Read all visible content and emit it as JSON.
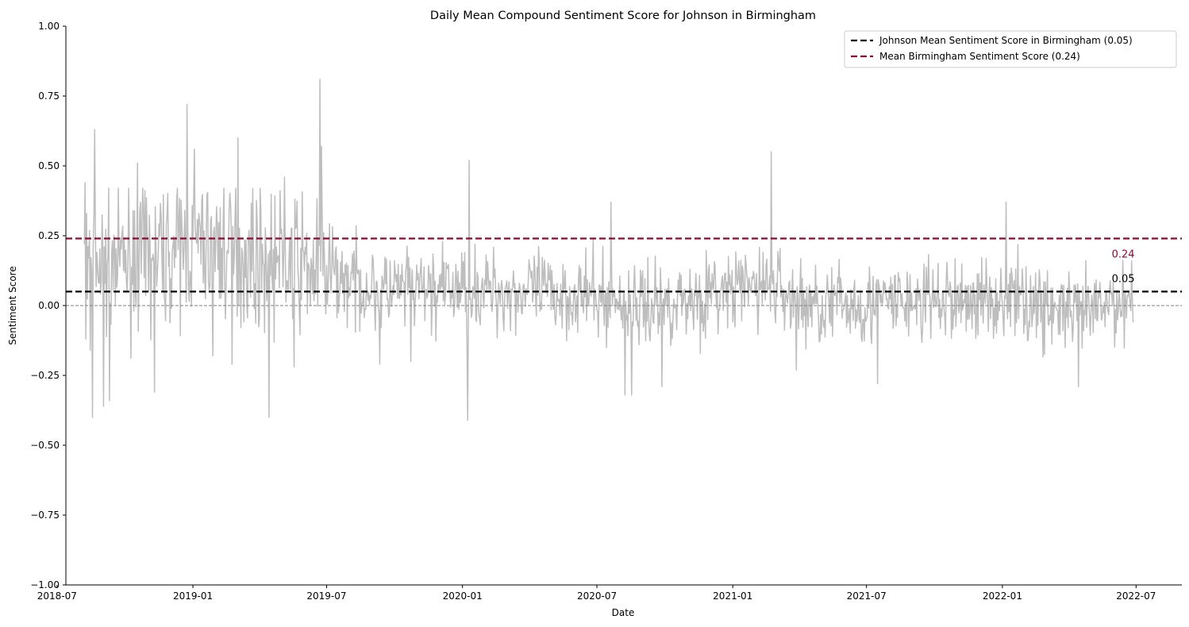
{
  "chart_data": {
    "type": "line",
    "title": "Daily Mean Compound Sentiment Score for Johnson in Birmingham",
    "xlabel": "Date",
    "ylabel": "Sentiment Score",
    "xlim": [
      "2018-07-13",
      "2022-09-01"
    ],
    "ylim": [
      -1.0,
      1.0
    ],
    "x_ticks": [
      "2018-07",
      "2019-01",
      "2019-07",
      "2020-01",
      "2020-07",
      "2021-01",
      "2021-07",
      "2022-01",
      "2022-07"
    ],
    "y_ticks": [
      "1.00",
      "0.75",
      "0.50",
      "0.25",
      "0.00",
      "−0.25",
      "−0.50",
      "−0.75",
      "−1.00"
    ],
    "y_tick_values": [
      1.0,
      0.75,
      0.5,
      0.25,
      0.0,
      -0.25,
      -0.5,
      -0.75,
      -1.0
    ],
    "grid": false,
    "legend_position": "top-right",
    "series": [
      {
        "color": "#bebebe",
        "key_points": [
          {
            "x": "2018-08-07",
            "y": 0.22
          },
          {
            "x": "2018-08-08",
            "y": 0.44
          },
          {
            "x": "2018-08-09",
            "y": -0.12
          },
          {
            "x": "2018-08-10",
            "y": 0.33
          },
          {
            "x": "2018-08-13",
            "y": 0.17
          },
          {
            "x": "2018-08-15",
            "y": -0.16
          },
          {
            "x": "2018-08-18",
            "y": -0.4
          },
          {
            "x": "2018-08-21",
            "y": 0.63
          },
          {
            "x": "2018-09-02",
            "y": -0.36
          },
          {
            "x": "2018-09-10",
            "y": -0.34
          },
          {
            "x": "2018-10-18",
            "y": 0.51
          },
          {
            "x": "2018-11-10",
            "y": -0.31
          },
          {
            "x": "2018-12-24",
            "y": 0.72
          },
          {
            "x": "2019-01-03",
            "y": 0.56
          },
          {
            "x": "2019-01-28",
            "y": -0.18
          },
          {
            "x": "2019-02-23",
            "y": -0.21
          },
          {
            "x": "2019-03-03",
            "y": 0.6
          },
          {
            "x": "2019-04-14",
            "y": -0.4
          },
          {
            "x": "2019-05-05",
            "y": 0.46
          },
          {
            "x": "2019-05-18",
            "y": -0.22
          },
          {
            "x": "2019-06-22",
            "y": 0.81
          },
          {
            "x": "2019-06-24",
            "y": 0.57
          },
          {
            "x": "2019-09-11",
            "y": -0.21
          },
          {
            "x": "2019-10-23",
            "y": -0.2
          },
          {
            "x": "2020-01-08",
            "y": -0.41
          },
          {
            "x": "2020-01-10",
            "y": 0.52
          },
          {
            "x": "2020-07-20",
            "y": 0.37
          },
          {
            "x": "2020-08-08",
            "y": -0.32
          },
          {
            "x": "2020-08-17",
            "y": -0.32
          },
          {
            "x": "2020-09-27",
            "y": -0.29
          },
          {
            "x": "2021-02-22",
            "y": 0.55
          },
          {
            "x": "2021-03-28",
            "y": -0.23
          },
          {
            "x": "2021-07-16",
            "y": -0.28
          },
          {
            "x": "2022-01-06",
            "y": 0.37
          },
          {
            "x": "2022-04-14",
            "y": -0.29
          },
          {
            "x": "2022-06-25",
            "y": 0.16
          },
          {
            "x": "2022-06-27",
            "y": -0.06
          }
        ]
      }
    ],
    "reference_lines": [
      {
        "name": "Johnson Mean Sentiment Score in Birmingham (0.05)",
        "y": 0.05,
        "color": "#000000",
        "style": "dashed",
        "label": "0.05"
      },
      {
        "name": "Mean Birmingham Sentiment Score (0.24)",
        "y": 0.24,
        "color": "#8b0a32",
        "style": "dashed",
        "label": "0.24"
      },
      {
        "y": 0.0,
        "color": "#808080",
        "style": "dashed-thin"
      }
    ]
  }
}
